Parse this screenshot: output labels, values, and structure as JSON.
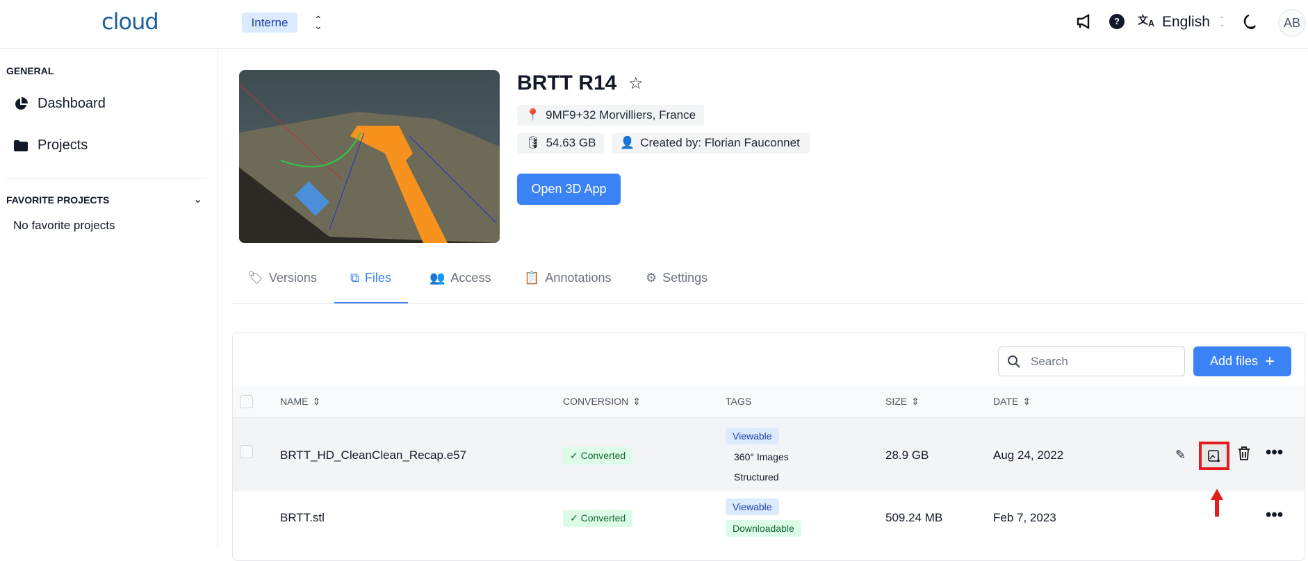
{
  "header": {
    "logo": "cloud",
    "org": "Interne",
    "language": "English",
    "avatar": "AB"
  },
  "sidebar": {
    "general_title": "GENERAL",
    "items": [
      {
        "label": "Dashboard",
        "icon": "pie-chart-icon"
      },
      {
        "label": "Projects",
        "icon": "folder-icon"
      }
    ],
    "favorites_title": "FAVORITE PROJECTS",
    "favorites_empty": "No favorite projects"
  },
  "project": {
    "title": "BRTT R14",
    "location": "9MF9+32 Morvilliers, France",
    "size": "54.63 GB",
    "created_by": "Created by: Florian Fauconnet",
    "open_button": "Open 3D App"
  },
  "tabs": [
    {
      "label": "Versions"
    },
    {
      "label": "Files",
      "active": true
    },
    {
      "label": "Access"
    },
    {
      "label": "Annotations"
    },
    {
      "label": "Settings"
    }
  ],
  "files": {
    "search_placeholder": "Search",
    "add_button": "Add files",
    "columns": [
      "NAME",
      "CONVERSION",
      "TAGS",
      "SIZE",
      "DATE"
    ],
    "rows": [
      {
        "name": "BRTT_HD_CleanClean_Recap.e57",
        "conversion": "Converted",
        "tags": [
          "Viewable",
          "360° Images",
          "Structured"
        ],
        "size": "28.9 GB",
        "date": "Aug 24, 2022"
      },
      {
        "name": "BRTT.stl",
        "conversion": "Converted",
        "tags": [
          "Viewable",
          "Downloadable"
        ],
        "size": "509.24 MB",
        "date": "Feb 7, 2023"
      }
    ]
  },
  "colors": {
    "accent": "#3b82f6",
    "highlight": "#e11d1d"
  }
}
